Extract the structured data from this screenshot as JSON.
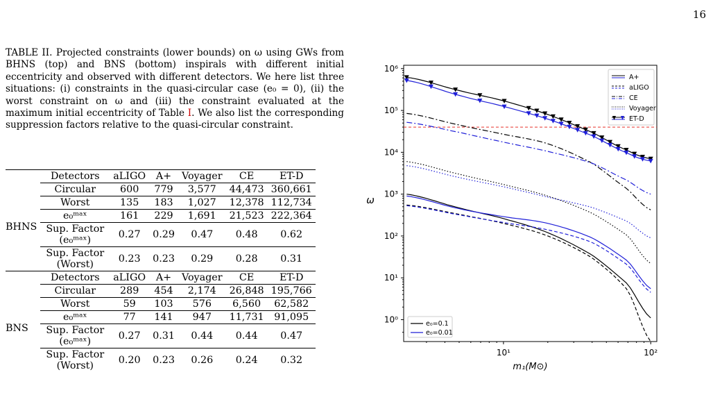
{
  "page_number": "16",
  "caption": {
    "text": "TABLE II. Projected constraints (lower bounds) on ω using GWs from BHNS (top) and BNS (bottom) inspirals with different initial eccentricity and observed with different detectors. We here list three situations: (i) constraints in the quasi-circular case (e₀ = 0), (ii) the worst constraint on ω and (iii) the constraint evaluated at the maximum initial eccentricity of Table ",
    "ref": "I",
    "tail": ". We also list the corresponding suppression factors relative to the quasi-circular constraint."
  },
  "table": {
    "header": [
      "Detectors",
      "aLIGO",
      "A+",
      "Voyager",
      "CE",
      "ET-D"
    ],
    "groups": [
      {
        "name": "BHNS",
        "rows": [
          {
            "label": "Circular",
            "values": [
              "600",
              "779",
              "3,577",
              "44,473",
              "360,661"
            ]
          },
          {
            "label": "Worst",
            "values": [
              "135",
              "183",
              "1,027",
              "12,378",
              "112,734"
            ]
          },
          {
            "label": "e₀ᵐᵃˣ",
            "values": [
              "161",
              "229",
              "1,691",
              "21,523",
              "222,364"
            ]
          },
          {
            "label": "Sup. Factor (e₀ᵐᵃˣ)",
            "values": [
              "0.27",
              "0.29",
              "0.47",
              "0.48",
              "0.62"
            ]
          },
          {
            "label": "Sup. Factor (Worst)",
            "values": [
              "0.23",
              "0.23",
              "0.29",
              "0.28",
              "0.31"
            ]
          }
        ]
      },
      {
        "name": "BNS",
        "rows": [
          {
            "label": "Circular",
            "values": [
              "289",
              "454",
              "2,174",
              "26,848",
              "195,766"
            ]
          },
          {
            "label": "Worst",
            "values": [
              "59",
              "103",
              "576",
              "6,560",
              "62,582"
            ]
          },
          {
            "label": "e₀ᵐᵃˣ",
            "values": [
              "77",
              "141",
              "947",
              "11,731",
              "91,095"
            ]
          },
          {
            "label": "Sup. Factor (e₀ᵐᵃˣ)",
            "values": [
              "0.27",
              "0.31",
              "0.44",
              "0.44",
              "0.47"
            ]
          },
          {
            "label": "Sup. Factor (Worst)",
            "values": [
              "0.20",
              "0.23",
              "0.26",
              "0.24",
              "0.32"
            ]
          }
        ]
      }
    ]
  },
  "chart_data": {
    "type": "line",
    "xlabel": "m₁(M⊙)",
    "ylabel": "ω",
    "xscale": "log",
    "yscale": "log",
    "xlim": [
      2.1,
      110
    ],
    "ylim": [
      0.3,
      1000000
    ],
    "xticks": [
      {
        "v": 10,
        "label": "10¹"
      },
      {
        "v": 100,
        "label": "10²"
      }
    ],
    "yticks": [
      {
        "v": 1,
        "label": "10⁰"
      },
      {
        "v": 10,
        "label": "10¹"
      },
      {
        "v": 100,
        "label": "10²"
      },
      {
        "v": 1000,
        "label": "10³"
      },
      {
        "v": 10000,
        "label": "10⁴"
      },
      {
        "v": 100000,
        "label": "10⁵"
      },
      {
        "v": 1000000,
        "label": "10⁶"
      }
    ],
    "hline": {
      "y": 40000,
      "color": "#e8322a"
    },
    "colors": {
      "e0_0.1": "#000000",
      "e0_0.01": "#1f1fd8"
    },
    "detector_legend": [
      {
        "name": "A+",
        "style": "solid-double"
      },
      {
        "name": "aLIGO",
        "style": "dashed-double"
      },
      {
        "name": "CE",
        "style": "dashdot-double"
      },
      {
        "name": "Voyager",
        "style": "dotted-double"
      },
      {
        "name": "ET-D",
        "style": "triangle-double"
      }
    ],
    "ecc_legend": [
      {
        "name": "e₀=0.1",
        "color": "#000000"
      },
      {
        "name": "e₀=0.01",
        "color": "#1f1fd8"
      }
    ],
    "series": [
      {
        "detector": "ET-D",
        "e0": "0.1",
        "style": "triangle",
        "x": [
          2.2,
          5,
          10,
          20,
          40,
          70,
          100
        ],
        "y": [
          620000,
          300000,
          170000,
          80000,
          30000,
          11000,
          7000
        ]
      },
      {
        "detector": "ET-D",
        "e0": "0.01",
        "style": "triangle",
        "x": [
          2.2,
          5,
          10,
          20,
          40,
          70,
          100
        ],
        "y": [
          520000,
          230000,
          125000,
          62000,
          25000,
          9500,
          6200
        ]
      },
      {
        "detector": "CE",
        "e0": "0.1",
        "style": "dashdot",
        "x": [
          2.2,
          5,
          10,
          20,
          40,
          70,
          100
        ],
        "y": [
          85000,
          45000,
          27000,
          16000,
          5500,
          1300,
          420
        ]
      },
      {
        "detector": "CE",
        "e0": "0.01",
        "style": "dashdot",
        "x": [
          2.2,
          5,
          10,
          20,
          40,
          70,
          100
        ],
        "y": [
          52000,
          30000,
          17500,
          10500,
          5500,
          2100,
          1000
        ]
      },
      {
        "detector": "Voyager",
        "e0": "0.1",
        "style": "dotted",
        "x": [
          2.2,
          5,
          10,
          20,
          40,
          70,
          100
        ],
        "y": [
          6000,
          3000,
          1700,
          900,
          350,
          100,
          22
        ]
      },
      {
        "detector": "Voyager",
        "e0": "0.01",
        "style": "dotted",
        "x": [
          2.2,
          5,
          10,
          20,
          40,
          70,
          100
        ],
        "y": [
          4800,
          2500,
          1500,
          850,
          480,
          220,
          90
        ]
      },
      {
        "detector": "A+",
        "e0": "0.1",
        "style": "solid",
        "x": [
          2.2,
          5,
          10,
          20,
          40,
          70,
          100
        ],
        "y": [
          1000,
          470,
          260,
          120,
          35,
          7,
          1.1
        ]
      },
      {
        "detector": "A+",
        "e0": "0.01",
        "style": "solid",
        "x": [
          2.2,
          5,
          10,
          20,
          40,
          70,
          100
        ],
        "y": [
          900,
          450,
          290,
          200,
          90,
          25,
          5.5
        ]
      },
      {
        "detector": "aLIGO",
        "e0": "0.1",
        "style": "dashed",
        "x": [
          2.2,
          5,
          10,
          20,
          40,
          70,
          100
        ],
        "y": [
          550,
          330,
          200,
          100,
          30,
          5,
          0.3
        ]
      },
      {
        "detector": "aLIGO",
        "e0": "0.01",
        "style": "dashed",
        "x": [
          2.2,
          5,
          10,
          20,
          40,
          70,
          100
        ],
        "y": [
          530,
          320,
          210,
          140,
          70,
          20,
          4.5
        ]
      }
    ]
  }
}
